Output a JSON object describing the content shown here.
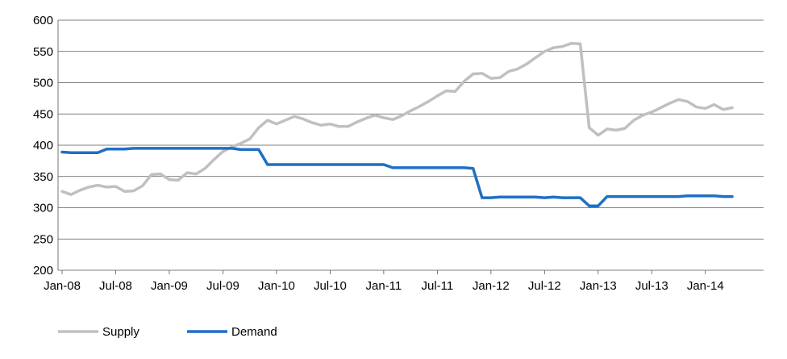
{
  "chart_data": {
    "type": "line",
    "title": "",
    "xlabel": "",
    "ylabel": "",
    "ylim": [
      200,
      600
    ],
    "yticks": [
      200,
      250,
      300,
      350,
      400,
      450,
      500,
      550,
      600
    ],
    "x_tick_labels": [
      "Jan-08",
      "Jul-08",
      "Jan-09",
      "Jul-09",
      "Jan-10",
      "Jul-10",
      "Jan-11",
      "Jul-11",
      "Jan-12",
      "Jul-12",
      "Jan-13",
      "Jul-13",
      "Jan-14"
    ],
    "x_start": "Jan-08",
    "x_end": "Jun-14",
    "grid": "horizontal",
    "legend_position": "bottom-left",
    "series": [
      {
        "name": "Supply",
        "color": "#c0c0c0",
        "values": [
          326,
          321,
          328,
          333,
          336,
          333,
          334,
          326,
          327,
          335,
          353,
          354,
          345,
          344,
          356,
          354,
          363,
          377,
          390,
          397,
          403,
          410,
          428,
          440,
          434,
          440,
          446,
          442,
          436,
          432,
          434,
          430,
          430,
          437,
          443,
          448,
          444,
          441,
          447,
          455,
          462,
          470,
          479,
          487,
          486,
          502,
          514,
          515,
          507,
          508,
          518,
          522,
          530,
          540,
          550,
          556,
          558,
          563,
          562,
          428,
          416,
          426,
          424,
          427,
          440,
          448,
          453,
          460,
          467,
          473,
          470,
          461,
          459,
          465,
          457,
          460
        ]
      },
      {
        "name": "Demand",
        "color": "#1f6fc5",
        "values": [
          389,
          388,
          388,
          388,
          388,
          394,
          394,
          394,
          395,
          395,
          395,
          395,
          395,
          395,
          395,
          395,
          395,
          395,
          395,
          395,
          393,
          393,
          393,
          369,
          369,
          369,
          369,
          369,
          369,
          369,
          369,
          369,
          369,
          369,
          369,
          369,
          369,
          364,
          364,
          364,
          364,
          364,
          364,
          364,
          364,
          364,
          363,
          316,
          316,
          317,
          317,
          317,
          317,
          317,
          316,
          317,
          316,
          316,
          316,
          303,
          303,
          318,
          318,
          318,
          318,
          318,
          318,
          318,
          318,
          318,
          319,
          319,
          319,
          319,
          318,
          318
        ]
      }
    ]
  }
}
